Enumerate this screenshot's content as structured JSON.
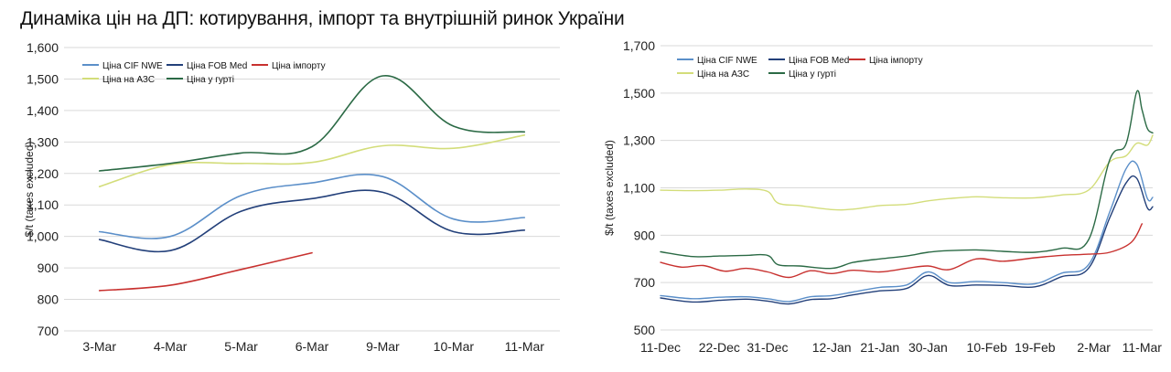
{
  "title": "Динаміка цін на ДП: котирування, імпорт та внутрішній ринок України",
  "chart_data": [
    {
      "type": "line",
      "ylabel": "$/t (taxes excluded)",
      "ylim": [
        700,
        1600
      ],
      "yticks": [
        700,
        800,
        900,
        1000,
        1100,
        1200,
        1300,
        1400,
        1500,
        1600
      ],
      "ytick_labels": [
        "700",
        "800",
        "900",
        "1,000",
        "1,100",
        "1,200",
        "1,300",
        "1,400",
        "1,500",
        "1,600"
      ],
      "categories": [
        "3-Mar",
        "4-Mar",
        "5-Mar",
        "6-Mar",
        "9-Mar",
        "10-Mar",
        "11-Mar"
      ],
      "grid": "horizontal",
      "legend": "top-left",
      "series": [
        {
          "name": "Ціна CIF NWE",
          "color": "#5b8fc9",
          "values": [
            1015,
            1000,
            1130,
            1170,
            1190,
            1055,
            1060
          ]
        },
        {
          "name": "Ціна FOB Med",
          "color": "#23407a",
          "values": [
            990,
            955,
            1080,
            1120,
            1140,
            1015,
            1020
          ]
        },
        {
          "name": "Ціна імпорту",
          "color": "#c8312f",
          "values": [
            828,
            845,
            895,
            948,
            null,
            null,
            null
          ]
        },
        {
          "name": "Ціна на АЗС",
          "color": "#d3dd7a",
          "values": [
            1158,
            1228,
            1232,
            1235,
            1288,
            1280,
            1322
          ]
        },
        {
          "name": "Ціна у гурті",
          "color": "#2b6a45",
          "values": [
            1208,
            1232,
            1265,
            1285,
            1510,
            1350,
            1332
          ]
        }
      ]
    },
    {
      "type": "line",
      "ylabel": "$/t (taxes excluded)",
      "ylim": [
        500,
        1700
      ],
      "yticks": [
        500,
        700,
        900,
        1100,
        1300,
        1500,
        1700
      ],
      "ytick_labels": [
        "500",
        "700",
        "900",
        "1,100",
        "1,300",
        "1,500",
        "1,700"
      ],
      "xtick_labels": [
        "11-Dec",
        "22-Dec",
        "31-Dec",
        "12-Jan",
        "21-Jan",
        "30-Jan",
        "10-Feb",
        "19-Feb",
        "2-Mar",
        "11-Mar"
      ],
      "xtick_days": [
        0,
        11,
        20,
        32,
        41,
        50,
        61,
        70,
        81,
        90
      ],
      "grid": "horizontal",
      "legend": "top-left",
      "series": [
        {
          "name": "Ціна CIF NWE",
          "color": "#5b8fc9",
          "x": [
            0,
            6,
            11,
            16,
            20,
            24,
            28,
            32,
            36,
            41,
            46,
            50,
            54,
            59,
            64,
            70,
            75,
            80,
            84,
            87,
            89,
            91,
            92
          ],
          "y": [
            645,
            632,
            638,
            640,
            632,
            620,
            640,
            645,
            660,
            680,
            690,
            745,
            700,
            705,
            700,
            695,
            740,
            775,
            1000,
            1180,
            1200,
            1055,
            1060
          ]
        },
        {
          "name": "Ціна FOB Med",
          "color": "#23407a",
          "x": [
            0,
            6,
            11,
            16,
            20,
            24,
            28,
            32,
            36,
            41,
            46,
            50,
            54,
            59,
            64,
            70,
            75,
            80,
            84,
            87,
            89,
            91,
            92
          ],
          "y": [
            635,
            618,
            625,
            630,
            622,
            610,
            628,
            632,
            648,
            665,
            675,
            730,
            688,
            690,
            688,
            682,
            725,
            760,
            975,
            1120,
            1140,
            1015,
            1020
          ]
        },
        {
          "name": "Ціна імпорту",
          "color": "#c8312f",
          "x": [
            0,
            4,
            8,
            12,
            16,
            20,
            24,
            28,
            32,
            36,
            41,
            46,
            50,
            54,
            59,
            64,
            70,
            75,
            80,
            84,
            88,
            90
          ],
          "y": [
            785,
            765,
            772,
            748,
            760,
            745,
            722,
            750,
            738,
            752,
            745,
            760,
            770,
            755,
            800,
            790,
            805,
            815,
            820,
            828,
            870,
            948
          ]
        },
        {
          "name": "Ціна на АЗС",
          "color": "#d3dd7a",
          "x": [
            0,
            6,
            11,
            16,
            20,
            22,
            26,
            32,
            36,
            41,
            46,
            50,
            54,
            59,
            64,
            70,
            75,
            80,
            84,
            87,
            89,
            91,
            92
          ],
          "y": [
            1090,
            1088,
            1090,
            1095,
            1085,
            1035,
            1025,
            1008,
            1010,
            1025,
            1030,
            1045,
            1055,
            1062,
            1058,
            1058,
            1070,
            1090,
            1210,
            1235,
            1288,
            1280,
            1322
          ]
        },
        {
          "name": "Ціна у гурті",
          "color": "#2b6a45",
          "x": [
            0,
            6,
            11,
            16,
            20,
            22,
            26,
            32,
            36,
            41,
            46,
            50,
            54,
            59,
            64,
            70,
            75,
            80,
            84,
            87,
            89,
            90,
            91,
            92
          ],
          "y": [
            830,
            810,
            812,
            815,
            815,
            775,
            770,
            760,
            785,
            800,
            812,
            828,
            835,
            838,
            832,
            828,
            845,
            880,
            1220,
            1285,
            1505,
            1430,
            1350,
            1332
          ]
        }
      ]
    }
  ]
}
